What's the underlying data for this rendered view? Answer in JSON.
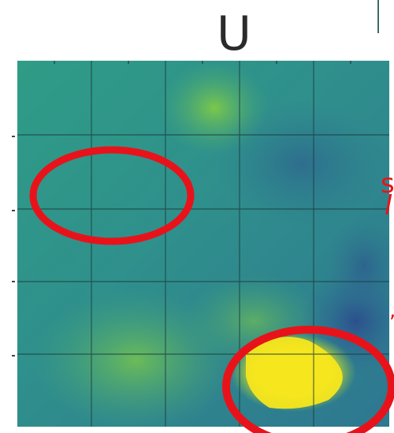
{
  "figure": {
    "title": "U",
    "grid": true
  },
  "annotations": {
    "side_text_1": "s",
    "side_text_2": "l",
    "side_text_3": ",",
    "marker_color": "#e8131a"
  },
  "colors": {
    "background_field": "#2e8f8c",
    "bright_region": "#f2e61a",
    "dark_region": "#2c5b93"
  }
}
